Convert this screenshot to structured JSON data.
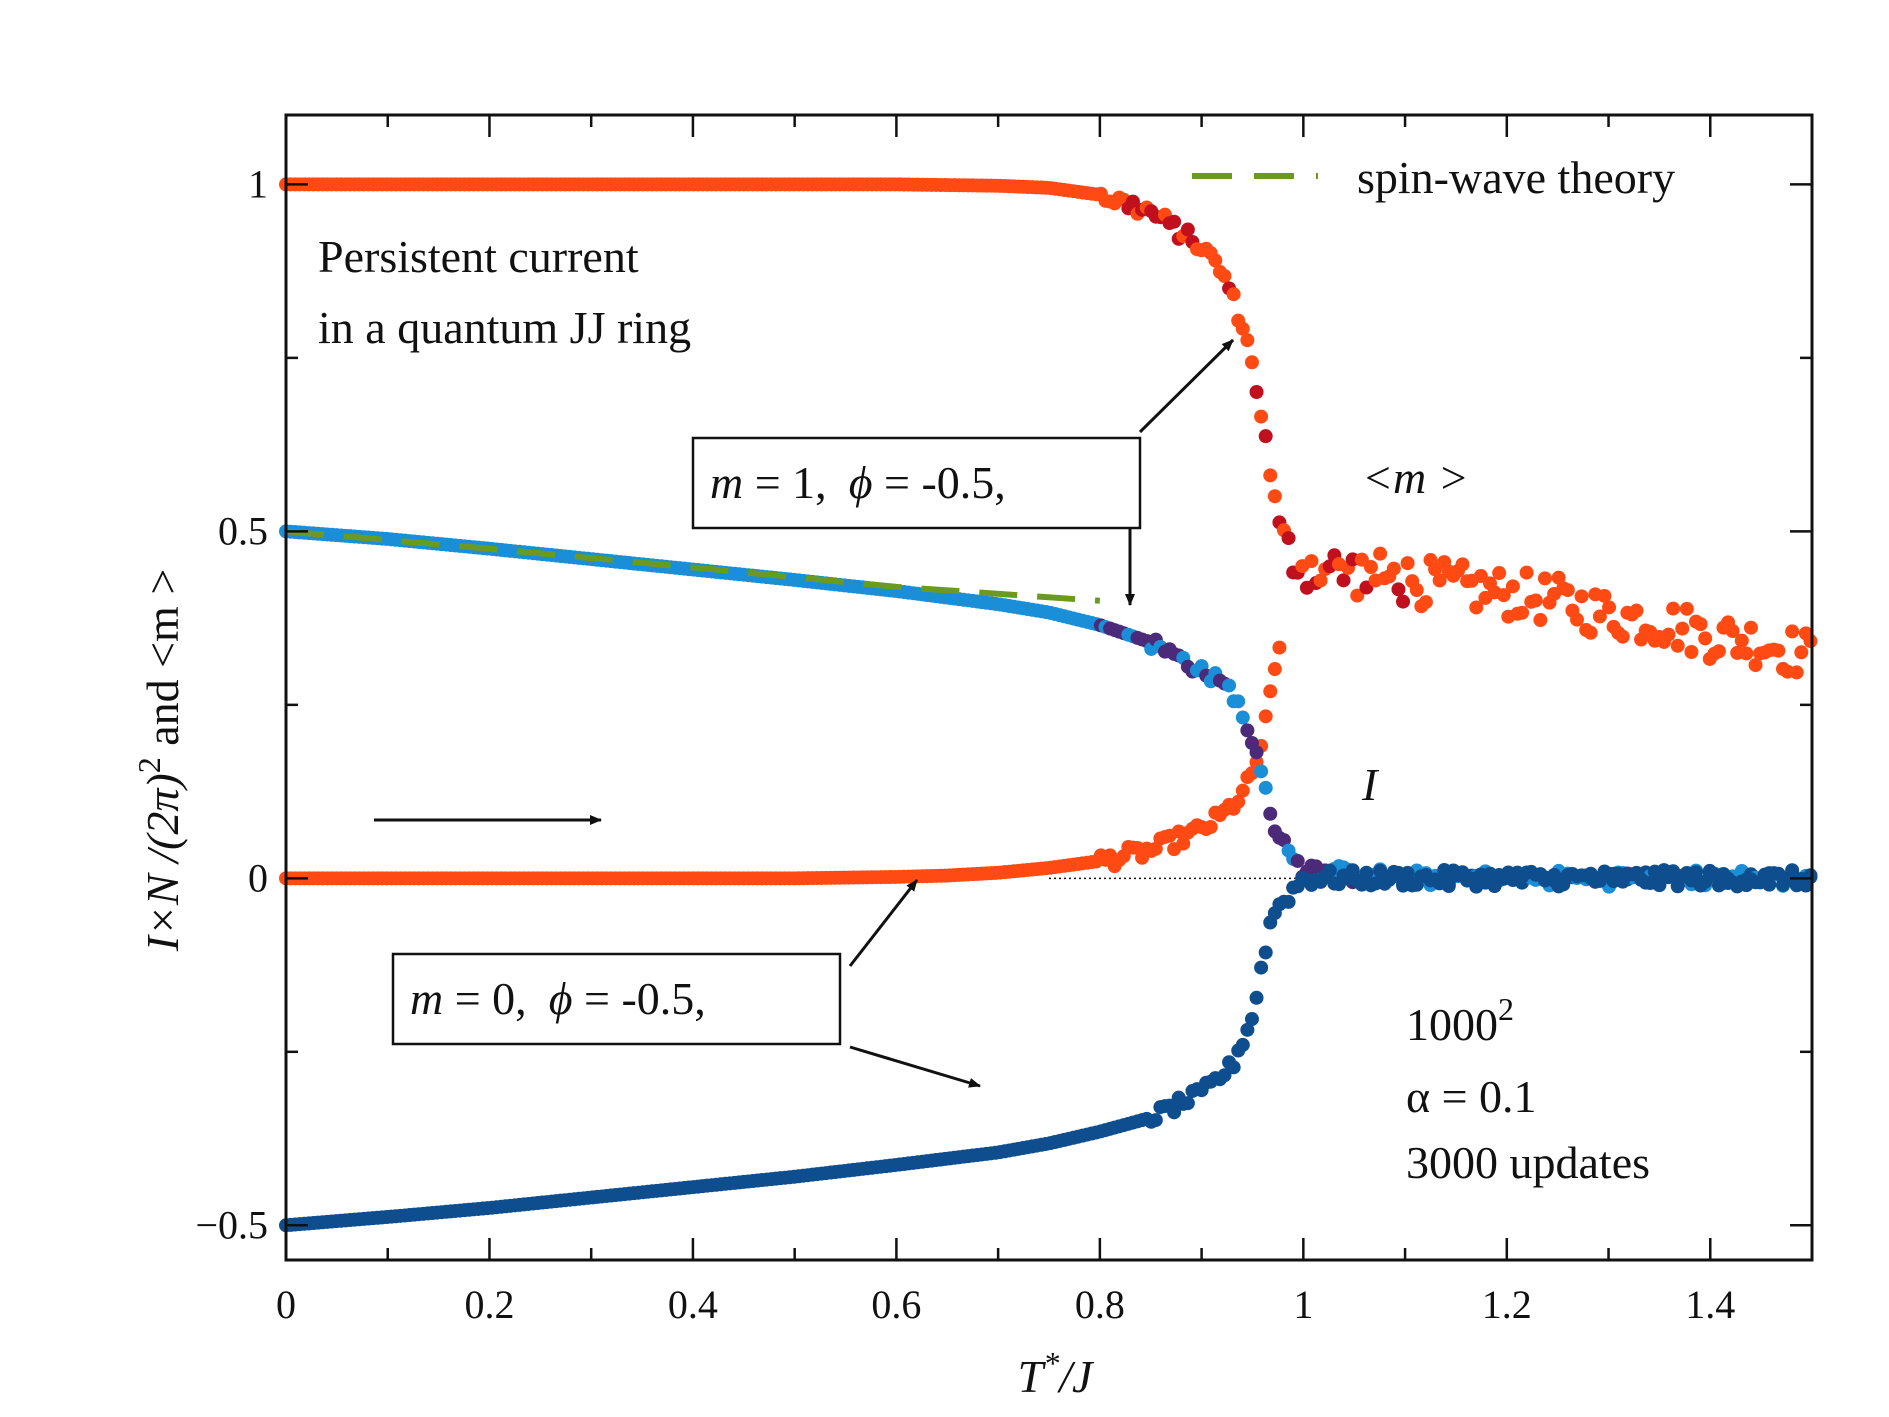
{
  "chart_data": {
    "type": "scatter",
    "title": "",
    "xlabel": {
      "main": "T",
      "sup": "*",
      "rest": "/J"
    },
    "ylabel": {
      "part1": "I×N /(2π)",
      "sup": "2",
      "part2": " and <m >"
    },
    "xlim": [
      0,
      1.5
    ],
    "ylim": [
      -0.55,
      1.1
    ],
    "x_ticks": [
      0,
      0.2,
      0.4,
      0.6,
      0.8,
      1,
      1.2,
      1.4
    ],
    "x_tick_labels": [
      "0",
      "0.2",
      "0.4",
      "0.6",
      "0.8",
      "1",
      "1.2",
      "1.4"
    ],
    "y_ticks": [
      -0.5,
      0,
      0.5,
      1
    ],
    "y_tick_labels": [
      "−0.5",
      "0",
      "0.5",
      "1"
    ],
    "grid": false,
    "legend": {
      "position": "top-right",
      "entries": [
        {
          "label": "spin-wave theory",
          "color": "#6a9a1f",
          "style": "dashed"
        }
      ]
    },
    "annotations": {
      "title_line1": "Persistent current",
      "title_line2": "in a quantum JJ ring",
      "m_label": "<m >",
      "i_label": "I",
      "params_line1": "1000",
      "params_line1_sup": "2",
      "params_line2": "α = 0.1",
      "params_line3": "3000 updates",
      "box_m1": {
        "m": "m",
        "m_val": " = 1,",
        "phi": "ϕ",
        "phi_val": " = -0.5,"
      },
      "box_m0": {
        "m": "m",
        "m_val": " = 0,",
        "phi": "ϕ",
        "phi_val": " = -0.5,"
      }
    },
    "series": [
      {
        "name": "<m> (m=1 start)",
        "color": "#ff4a14",
        "points": [
          [
            0.0,
            1.0
          ],
          [
            0.1,
            1.0
          ],
          [
            0.2,
            1.0
          ],
          [
            0.3,
            1.0
          ],
          [
            0.4,
            1.0
          ],
          [
            0.5,
            1.0
          ],
          [
            0.6,
            1.0
          ],
          [
            0.7,
            0.998
          ],
          [
            0.75,
            0.995
          ],
          [
            0.8,
            0.985
          ],
          [
            0.85,
            0.96
          ],
          [
            0.9,
            0.91
          ],
          [
            0.92,
            0.875
          ],
          [
            0.94,
            0.8
          ],
          [
            0.95,
            0.74
          ],
          [
            0.96,
            0.66
          ],
          [
            0.97,
            0.56
          ],
          [
            0.98,
            0.48
          ],
          [
            1.0,
            0.45
          ],
          [
            1.05,
            0.44
          ],
          [
            1.1,
            0.43
          ],
          [
            1.15,
            0.42
          ],
          [
            1.2,
            0.41
          ],
          [
            1.25,
            0.4
          ],
          [
            1.3,
            0.38
          ],
          [
            1.35,
            0.37
          ],
          [
            1.4,
            0.35
          ],
          [
            1.45,
            0.34
          ],
          [
            1.5,
            0.32
          ]
        ]
      },
      {
        "name": "<m> (m=0 start)",
        "color": "#ff4a14",
        "points": [
          [
            0.0,
            0.0
          ],
          [
            0.1,
            0.0
          ],
          [
            0.2,
            0.0
          ],
          [
            0.3,
            0.0
          ],
          [
            0.4,
            0.0
          ],
          [
            0.5,
            0.0
          ],
          [
            0.6,
            0.002
          ],
          [
            0.65,
            0.004
          ],
          [
            0.7,
            0.008
          ],
          [
            0.75,
            0.015
          ],
          [
            0.8,
            0.025
          ],
          [
            0.85,
            0.04
          ],
          [
            0.9,
            0.07
          ],
          [
            0.92,
            0.09
          ],
          [
            0.94,
            0.12
          ],
          [
            0.95,
            0.15
          ],
          [
            0.96,
            0.2
          ],
          [
            0.97,
            0.28
          ],
          [
            0.98,
            0.36
          ]
        ]
      },
      {
        "name": "I (m=1 start)",
        "color": "#1a8fd8",
        "points": [
          [
            0.0,
            0.5
          ],
          [
            0.1,
            0.489
          ],
          [
            0.2,
            0.475
          ],
          [
            0.3,
            0.46
          ],
          [
            0.4,
            0.445
          ],
          [
            0.5,
            0.43
          ],
          [
            0.6,
            0.414
          ],
          [
            0.7,
            0.395
          ],
          [
            0.75,
            0.383
          ],
          [
            0.8,
            0.365
          ],
          [
            0.85,
            0.34
          ],
          [
            0.9,
            0.3
          ],
          [
            0.93,
            0.27
          ],
          [
            0.95,
            0.2
          ],
          [
            0.96,
            0.14
          ],
          [
            0.97,
            0.08
          ],
          [
            1.0,
            0.01
          ],
          [
            1.1,
            0.0
          ],
          [
            1.2,
            0.0
          ],
          [
            1.3,
            0.0
          ],
          [
            1.4,
            0.0
          ],
          [
            1.5,
            0.0
          ]
        ]
      },
      {
        "name": "I (m=0 start)",
        "color": "#0e4e8e",
        "points": [
          [
            0.0,
            -0.5
          ],
          [
            0.1,
            -0.488
          ],
          [
            0.2,
            -0.475
          ],
          [
            0.3,
            -0.46
          ],
          [
            0.4,
            -0.445
          ],
          [
            0.5,
            -0.43
          ],
          [
            0.6,
            -0.413
          ],
          [
            0.7,
            -0.395
          ],
          [
            0.75,
            -0.382
          ],
          [
            0.8,
            -0.365
          ],
          [
            0.85,
            -0.345
          ],
          [
            0.9,
            -0.31
          ],
          [
            0.93,
            -0.27
          ],
          [
            0.95,
            -0.2
          ],
          [
            0.96,
            -0.12
          ],
          [
            0.97,
            -0.05
          ],
          [
            1.0,
            0.0
          ],
          [
            1.1,
            0.0
          ],
          [
            1.2,
            0.0
          ],
          [
            1.3,
            0.0
          ],
          [
            1.4,
            0.0
          ],
          [
            1.5,
            0.0
          ]
        ]
      },
      {
        "name": "spin-wave theory",
        "color": "#6a9a1f",
        "style": "dashed",
        "points": [
          [
            0.0,
            0.5
          ],
          [
            0.2,
            0.475
          ],
          [
            0.4,
            0.448
          ],
          [
            0.6,
            0.42
          ],
          [
            0.8,
            0.4
          ]
        ]
      }
    ]
  }
}
